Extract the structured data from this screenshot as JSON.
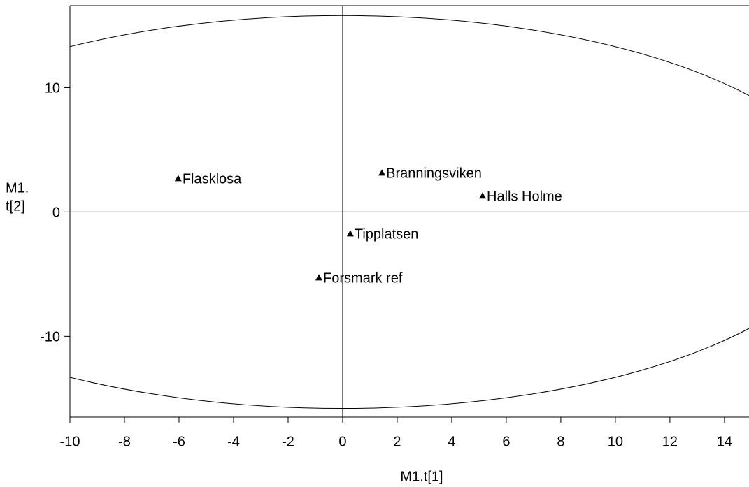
{
  "chart_data": {
    "type": "scatter",
    "xlabel": "M1.t[1]",
    "ylabel": [
      "M1.",
      "t[2]"
    ],
    "xlim": [
      -10,
      14.9
    ],
    "ylim": [
      -16.5,
      16.6
    ],
    "xticks": [
      -10,
      -8,
      -6,
      -4,
      -2,
      0,
      2,
      4,
      6,
      8,
      10,
      12,
      14
    ],
    "yticks": [
      -10,
      0,
      10
    ],
    "color": "#000000",
    "points": [
      {
        "label": "Flasklosa",
        "x": -6.03,
        "y": 2.7
      },
      {
        "label": "Branningsviken",
        "x": 1.44,
        "y": 3.15
      },
      {
        "label": "Halls Holme",
        "x": 5.13,
        "y": 1.3
      },
      {
        "label": "Tipplatsen",
        "x": 0.28,
        "y": -1.74
      },
      {
        "label": "Forsmark ref",
        "x": -0.87,
        "y": -5.28
      }
    ],
    "ellipse": {
      "rx": 18.5,
      "ry": 15.8
    }
  }
}
